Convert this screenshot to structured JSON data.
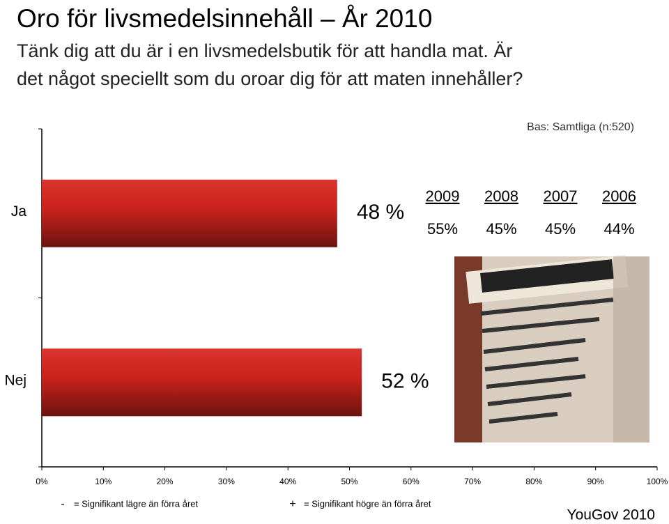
{
  "chart_data": {
    "type": "bar",
    "orientation": "horizontal",
    "title": "Oro för livsmedelsinnehåll – År 2010",
    "subtitle": [
      "Tänk dig att du är i en livsmedelsbutik för att handla mat. Är",
      "det något speciellt som du oroar dig för att maten innehåller?"
    ],
    "base_note": "Bas: Samtliga (n:520)",
    "categories": [
      "Ja",
      "Nej"
    ],
    "values": [
      48,
      52
    ],
    "value_labels": [
      "48 %",
      "52 %"
    ],
    "color": "#d8251f",
    "xlim": [
      0,
      100
    ],
    "xticks": [
      {
        "value": 0,
        "label": "0%"
      },
      {
        "value": 10,
        "label": "10%"
      },
      {
        "value": 20,
        "label": "20%"
      },
      {
        "value": 30,
        "label": "30%"
      },
      {
        "value": 40,
        "label": "40%"
      },
      {
        "value": 50,
        "label": "50%"
      },
      {
        "value": 60,
        "label": "60%"
      },
      {
        "value": 70,
        "label": "70%"
      },
      {
        "value": 80,
        "label": "80%"
      },
      {
        "value": 90,
        "label": "90%"
      },
      {
        "value": 100,
        "label": "100%"
      }
    ],
    "comparison": {
      "years": [
        "2009",
        "2008",
        "2007",
        "2006"
      ],
      "values": [
        55,
        45,
        45,
        44
      ],
      "value_labels": [
        "55%",
        "45%",
        "45%",
        "44%"
      ]
    },
    "footnotes": [
      {
        "symbol": "-",
        "text": "= Signifikant lägre än förra året"
      },
      {
        "symbol": "+",
        "text": "= Signifikant högre än förra året"
      }
    ],
    "source": "YouGov 2010"
  }
}
